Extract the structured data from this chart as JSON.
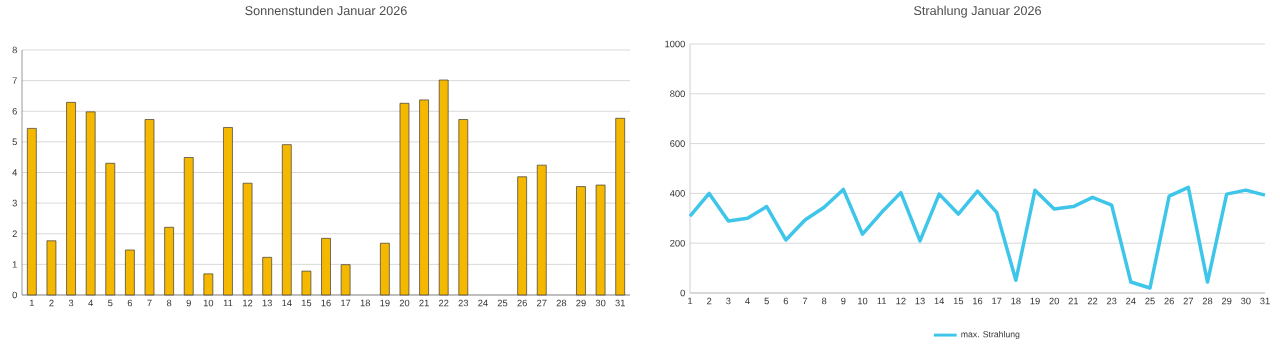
{
  "chart_data": [
    {
      "type": "bar",
      "title": "Sonnenstunden Januar 2026",
      "categories": [
        "1",
        "2",
        "3",
        "4",
        "5",
        "6",
        "7",
        "8",
        "9",
        "10",
        "11",
        "12",
        "13",
        "14",
        "15",
        "16",
        "17",
        "18",
        "19",
        "20",
        "21",
        "22",
        "23",
        "24",
        "25",
        "26",
        "27",
        "28",
        "29",
        "30",
        "31"
      ],
      "values": [
        5.44,
        1.77,
        6.29,
        5.98,
        4.3,
        1.47,
        5.73,
        2.21,
        4.49,
        0.69,
        5.47,
        3.65,
        1.23,
        4.91,
        0.78,
        1.85,
        0.99,
        null,
        1.69,
        6.26,
        6.37,
        7.02,
        5.73,
        null,
        null,
        3.86,
        4.24,
        null,
        3.54,
        3.59,
        5.77
      ],
      "color": "#f5b800",
      "ylim": [
        0,
        8
      ],
      "yticks": [
        0,
        1,
        2,
        3,
        4,
        5,
        6,
        7,
        8
      ],
      "grid": "y",
      "legend": false
    },
    {
      "type": "line",
      "title": "Strahlung Januar 2026",
      "categories": [
        "1",
        "2",
        "3",
        "4",
        "5",
        "6",
        "7",
        "8",
        "9",
        "10",
        "11",
        "12",
        "13",
        "14",
        "15",
        "16",
        "17",
        "18",
        "19",
        "20",
        "21",
        "22",
        "23",
        "24",
        "25",
        "26",
        "27",
        "28",
        "29",
        "30",
        "31"
      ],
      "series": [
        {
          "name": "max. Strahlung",
          "color": "#3ec6ea",
          "values": [
            309,
            400,
            289,
            300,
            347,
            213,
            293,
            344,
            416,
            236,
            324,
            403,
            209,
            397,
            317,
            409,
            324,
            51,
            413,
            337,
            347,
            384,
            353,
            44,
            20,
            389,
            424,
            44,
            397,
            413,
            393
          ]
        }
      ],
      "ylim": [
        0,
        1000
      ],
      "yticks": [
        0,
        200,
        400,
        600,
        800,
        1000
      ],
      "grid": "y",
      "legend": "bottom"
    }
  ]
}
